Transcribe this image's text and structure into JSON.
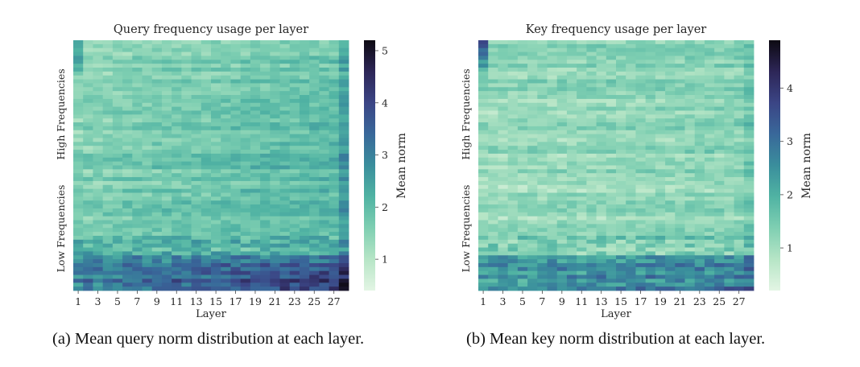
{
  "figure": {
    "captions": [
      "(a) Mean query norm distribution at each layer.",
      "(b) Mean key norm distribution at each layer."
    ]
  },
  "chart_data": [
    {
      "type": "heatmap",
      "title": "Query frequency usage per layer",
      "xlabel": "Layer",
      "ylabel_top": "High Frequencies",
      "ylabel_bottom": "Low Frequencies",
      "x_tick_labels": [
        "1",
        "3",
        "5",
        "7",
        "9",
        "11",
        "13",
        "15",
        "17",
        "19",
        "21",
        "23",
        "25",
        "27"
      ],
      "n_layers": 28,
      "n_frequency_rows": 64,
      "colorbar": {
        "label": "Mean norm",
        "min": 0.4,
        "max": 5.2,
        "ticks": [
          1,
          2,
          3,
          4,
          5
        ]
      },
      "cmap": [
        "#e3f5e4",
        "#b6e5c6",
        "#7fcfb2",
        "#50b3a3",
        "#3a8e9c",
        "#39689a",
        "#3b4585",
        "#2d2657",
        "#0d0a12"
      ],
      "profile": {
        "base_top": 1.45,
        "base_mid": 1.7,
        "layer_trend": 0.6,
        "bands": [
          {
            "from": 50,
            "to": 55,
            "value": 2.2
          },
          {
            "from": 55,
            "to": 64,
            "value": 3.0,
            "growth": 1.2
          }
        ],
        "first_column_high": 2.8,
        "last_column_boost": 0.5,
        "noise": 0.3,
        "seed": 11
      }
    },
    {
      "type": "heatmap",
      "title": "Key frequency usage per layer",
      "xlabel": "Layer",
      "ylabel_top": "High Frequencies",
      "ylabel_bottom": "Low Frequencies",
      "x_tick_labels": [
        "1",
        "3",
        "5",
        "7",
        "9",
        "11",
        "13",
        "15",
        "17",
        "19",
        "21",
        "23",
        "25",
        "27"
      ],
      "n_layers": 28,
      "n_frequency_rows": 64,
      "colorbar": {
        "label": "Mean norm",
        "min": 0.2,
        "max": 4.9,
        "ticks": [
          1,
          2,
          3,
          4
        ]
      },
      "cmap": [
        "#e3f5e4",
        "#b6e5c6",
        "#7fcfb2",
        "#50b3a3",
        "#3a8e9c",
        "#39689a",
        "#3b4585",
        "#2d2657",
        "#0d0a12"
      ],
      "profile": {
        "base_top": 1.2,
        "base_mid": 0.95,
        "layer_trend": 0.2,
        "bands": [
          {
            "from": 50,
            "to": 55,
            "value": 1.5
          },
          {
            "from": 55,
            "to": 64,
            "value": 2.3,
            "growth": 0.6
          }
        ],
        "first_column_high": 3.6,
        "last_column_boost": 0.3,
        "noise": 0.3,
        "seed": 29
      }
    }
  ]
}
